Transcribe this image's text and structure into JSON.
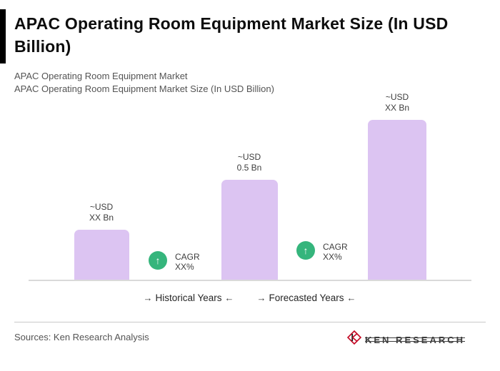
{
  "header": {
    "title": "APAC Operating Room Equipment Market Size (In USD Billion)",
    "subtitle1": "APAC Operating Room Equipment Market",
    "subtitle2": "APAC Operating Room Equipment Market Size (In USD Billion)"
  },
  "chart_data": {
    "type": "bar",
    "title": "APAC Operating Room Equipment Market Size (In USD Billion)",
    "unit": "USD Billion",
    "bars": [
      {
        "label_line1": "~USD",
        "label_line2": "XX Bn",
        "value_estimated": 0.25
      },
      {
        "label_line1": "~USD",
        "label_line2": "0.5 Bn",
        "value_estimated": 0.5
      },
      {
        "label_line1": "~USD",
        "label_line2": "XX Bn",
        "value_estimated": 0.8
      }
    ],
    "cagr_annotations": [
      {
        "line1": "CAGR",
        "line2": "XX%"
      },
      {
        "line1": "CAGR",
        "line2": "XX%"
      }
    ],
    "x_groups": [
      {
        "label": "Historical Years"
      },
      {
        "label": "Forecasted Years"
      }
    ],
    "bar_color": "#dcc4f2",
    "cagr_badge_color": "#35b57c",
    "cagr_arrow_icon": "↑",
    "legend_position": "none",
    "grid": false
  },
  "axis": {
    "arrow_right": "→",
    "arrow_left": "←"
  },
  "footer": {
    "source": "Sources: Ken Research Analysis",
    "logo_text": "KEN RESEARCH"
  }
}
